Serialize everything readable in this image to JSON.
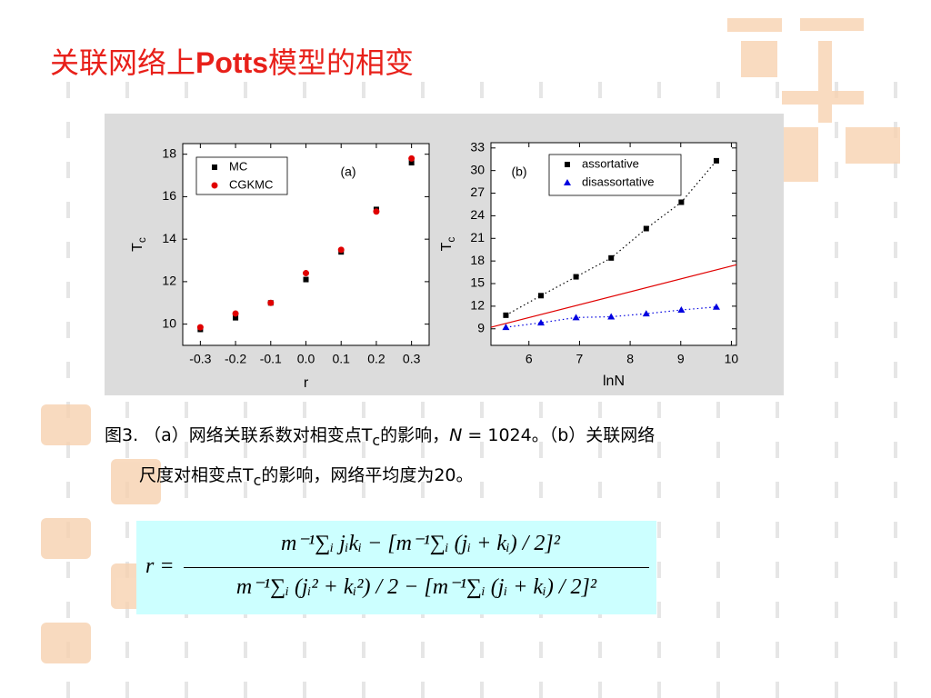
{
  "title": [
    "关联网络上",
    "Potts",
    "模型的相变"
  ],
  "chart_data": [
    {
      "type": "scatter",
      "annotation": "(a)",
      "xlabel": "r",
      "ylabel": [
        "T",
        "c"
      ],
      "x": [
        -0.3,
        -0.2,
        -0.1,
        0,
        0.1,
        0.2,
        0.3
      ],
      "series": [
        {
          "name": "MC",
          "color": "#000000",
          "marker": "square",
          "values": [
            9.75,
            10.3,
            11.0,
            12.1,
            13.4,
            15.4,
            17.6
          ]
        },
        {
          "name": "CGKMC",
          "color": "#e00000",
          "marker": "circle",
          "values": [
            9.85,
            10.5,
            11.0,
            12.4,
            13.5,
            15.3,
            17.8
          ]
        }
      ],
      "xlim": [
        -0.35,
        0.35
      ],
      "xticks": [
        -0.3,
        -0.2,
        -0.1,
        {
          "value": 0,
          "label": "0.0"
        },
        0.1,
        0.2,
        0.3
      ],
      "ylim": [
        9,
        18.5
      ],
      "yticks": [
        10,
        12,
        14,
        16,
        18
      ],
      "legend": "upper left"
    },
    {
      "type": "scatter",
      "annotation": "(b)",
      "xlabel": "lnN",
      "ylabel": [
        "T",
        "c"
      ],
      "x": [
        5.545,
        6.238,
        6.931,
        7.625,
        8.318,
        9.011,
        9.704
      ],
      "series": [
        {
          "name": "assortative",
          "color": "#000000",
          "marker": "square",
          "line_style": "dotted",
          "values": [
            10.8,
            13.4,
            15.9,
            18.4,
            22.3,
            25.8,
            31.3
          ]
        },
        {
          "name": "disassortative",
          "color": "#0000e0",
          "marker": "triangle",
          "line_style": "dotted",
          "values": [
            9.2,
            9.8,
            10.5,
            10.6,
            11.0,
            11.5,
            11.9
          ]
        }
      ],
      "lines": [
        {
          "color": "#e00000",
          "x": [
            5.25,
            10.1
          ],
          "values": [
            9.2,
            17.5
          ]
        }
      ],
      "xlim": [
        5.25,
        10.1
      ],
      "xticks": [
        6,
        7,
        8,
        9,
        10
      ],
      "ylim": [
        6.8,
        33.7
      ],
      "yticks": [
        9,
        12,
        15,
        18,
        21,
        24,
        27,
        30,
        33
      ],
      "legend": "upper center"
    }
  ],
  "caption": [
    "图3. （a）网络关联系数对相变点T",
    "c",
    "的影响，",
    "N",
    " = 1024。（b）关联网络",
    "尺度对相变点T",
    "c",
    "的影响，网络平均度为20。"
  ],
  "formula": {
    "lhs": "r =",
    "numerator": "m⁻¹∑ᵢ jᵢkᵢ − [m⁻¹∑ᵢ (jᵢ + kᵢ) / 2]²",
    "denominator": "m⁻¹∑ᵢ (jᵢ² + kᵢ²) / 2 − [m⁻¹∑ᵢ (jᵢ + kᵢ) / 2]²"
  }
}
